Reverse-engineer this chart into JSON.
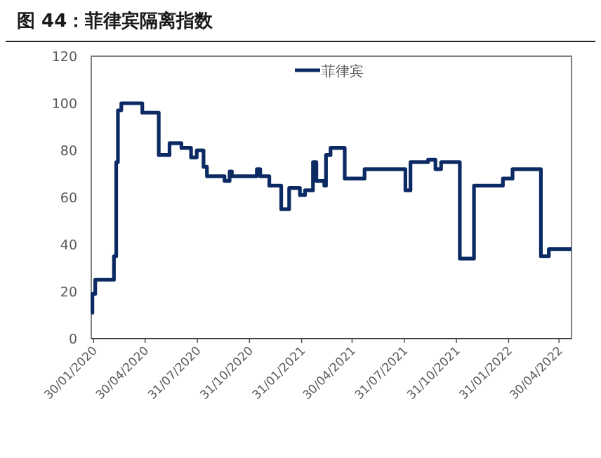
{
  "chart_data": {
    "type": "step",
    "title": "图 44：菲律宾隔离指数",
    "legend": "top",
    "ylim": [
      0,
      120
    ],
    "yticks": [
      0,
      20,
      40,
      60,
      80,
      100,
      120
    ],
    "xlim": [
      "2020-01-26",
      "2022-05-22"
    ],
    "xticks": [
      {
        "value": "2020-01-30",
        "label": "30/01/2020"
      },
      {
        "value": "2020-04-30",
        "label": "30/04/2020"
      },
      {
        "value": "2020-07-31",
        "label": "31/07/2020"
      },
      {
        "value": "2020-10-31",
        "label": "31/10/2020"
      },
      {
        "value": "2021-01-31",
        "label": "31/01/2021"
      },
      {
        "value": "2021-04-30",
        "label": "30/04/2021"
      },
      {
        "value": "2021-07-31",
        "label": "31/07/2021"
      },
      {
        "value": "2021-10-31",
        "label": "31/10/2021"
      },
      {
        "value": "2022-01-31",
        "label": "31/01/2022"
      },
      {
        "value": "2022-04-30",
        "label": "30/04/2022"
      }
    ],
    "x": [
      "2020-01-26",
      "2020-01-28",
      "2020-02-02",
      "2020-03-06",
      "2020-03-10",
      "2020-03-13",
      "2020-03-19",
      "2020-04-25",
      "2020-05-24",
      "2020-06-12",
      "2020-07-03",
      "2020-07-20",
      "2020-07-30",
      "2020-08-11",
      "2020-08-17",
      "2020-09-17",
      "2020-09-26",
      "2020-09-30",
      "2020-11-13",
      "2020-11-19",
      "2020-12-05",
      "2020-12-26",
      "2021-01-09",
      "2021-01-28",
      "2021-02-06",
      "2021-02-20",
      "2021-02-26",
      "2021-03-12",
      "2021-03-15",
      "2021-03-23",
      "2021-04-17",
      "2021-05-22",
      "2021-08-02",
      "2021-08-11",
      "2021-09-11",
      "2021-09-24",
      "2021-10-04",
      "2021-11-06",
      "2021-12-01",
      "2022-01-21",
      "2022-02-07",
      "2022-03-29",
      "2022-04-12",
      "2022-05-22"
    ],
    "series": [
      {
        "name": "菲律宾",
        "color": "#0b2a63",
        "values": [
          11,
          19,
          25,
          35,
          75,
          97,
          100,
          96,
          78,
          83,
          81,
          77,
          80,
          73,
          69,
          67,
          71,
          69,
          72,
          69,
          65,
          55,
          64,
          61,
          63,
          75,
          67,
          65,
          78,
          81,
          68,
          72,
          63,
          75,
          76,
          72,
          75,
          34,
          65,
          68,
          72,
          35,
          38,
          38
        ]
      }
    ]
  }
}
